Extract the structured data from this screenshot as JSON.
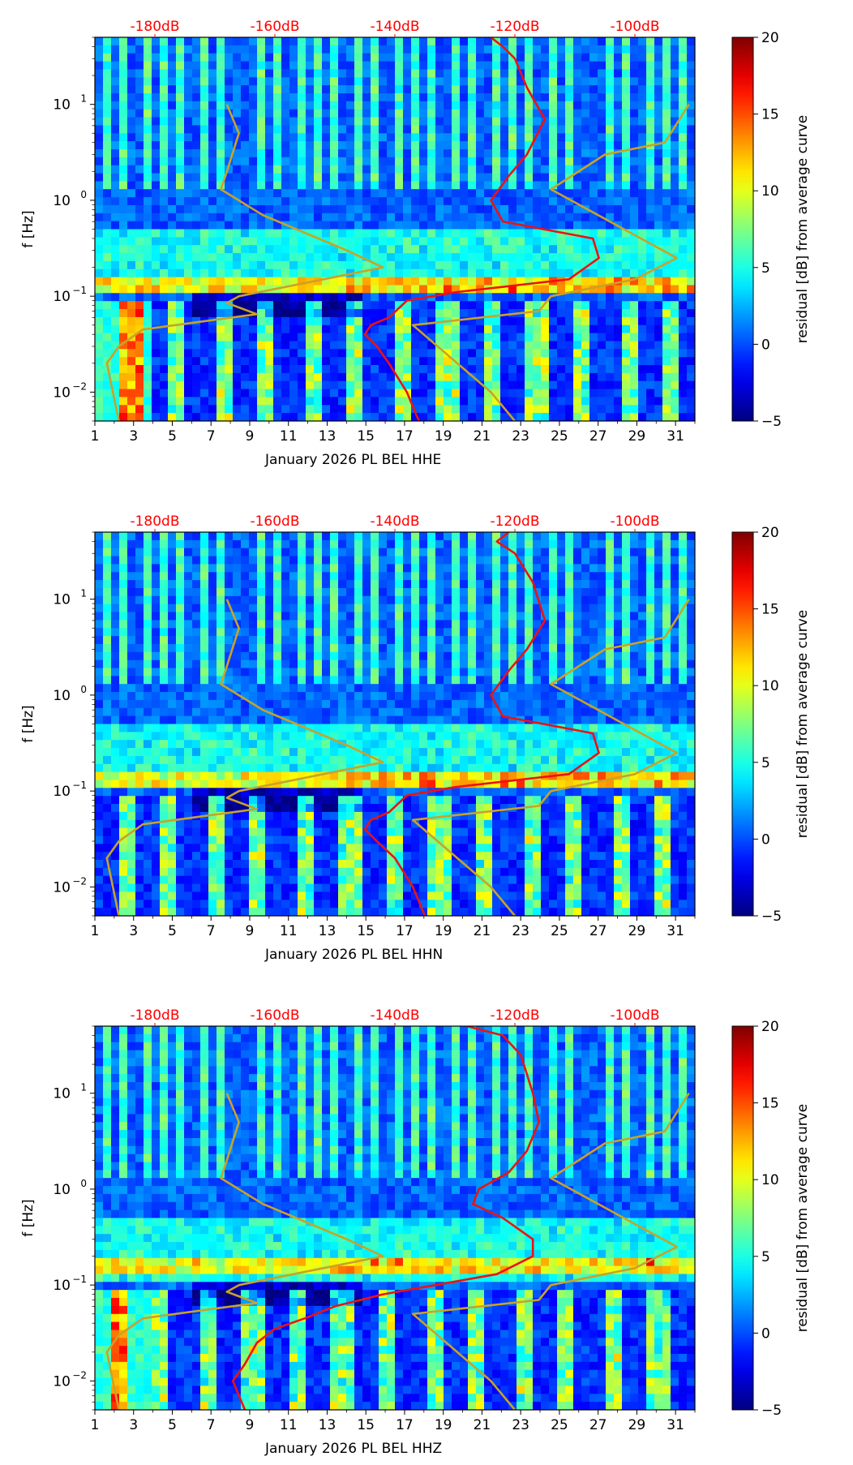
{
  "figure": {
    "colorbar_label": "residual [dB] from average curve",
    "colorbar_ticks": [
      -5,
      0,
      5,
      10,
      15,
      20
    ],
    "colorbar_range": [
      -5,
      20
    ],
    "colors": {
      "db_top_label": "#ff0000",
      "psd_curve": "#ee1111",
      "noise_model": "#c9a227",
      "axis": "#000000"
    }
  },
  "chart_data": [
    {
      "type": "heatmap",
      "title": "",
      "xlabel": "January 2026 PL BEL  HHE",
      "ylabel": "f [Hz]",
      "x_ticks": [
        "1",
        "3",
        "5",
        "7",
        "9",
        "11",
        "13",
        "15",
        "17",
        "19",
        "21",
        "23",
        "25",
        "27",
        "29",
        "31"
      ],
      "xlim": [
        1,
        32
      ],
      "y_ticks": [
        {
          "value": 0.01,
          "base": "10",
          "exp": "−2"
        },
        {
          "value": 0.1,
          "base": "10",
          "exp": "−1"
        },
        {
          "value": 1,
          "base": "10",
          "exp": "0"
        },
        {
          "value": 10,
          "base": "10",
          "exp": "1"
        }
      ],
      "ylim": [
        0.005,
        50
      ],
      "top_ticks": [
        {
          "label": "-180dB",
          "value": -180
        },
        {
          "label": "-160dB",
          "value": -160
        },
        {
          "label": "-140dB",
          "value": -140
        },
        {
          "label": "-120dB",
          "value": -120
        },
        {
          "label": "-100dB",
          "value": -100
        }
      ],
      "top_range": [
        -190,
        -90
      ],
      "series": [
        {
          "name": "psd_curve",
          "points": [
            [
              -124,
              50
            ],
            [
              -122,
              40
            ],
            [
              -120,
              30
            ],
            [
              -118,
              15
            ],
            [
              -115,
              7
            ],
            [
              -118,
              3
            ],
            [
              -121,
              1.8
            ],
            [
              -124,
              1
            ],
            [
              -122,
              0.6
            ],
            [
              -107,
              0.4
            ],
            [
              -106,
              0.25
            ],
            [
              -111,
              0.15
            ],
            [
              -130,
              0.11
            ],
            [
              -138,
              0.09
            ],
            [
              -141,
              0.06
            ],
            [
              -144,
              0.05
            ],
            [
              -145,
              0.04
            ],
            [
              -143,
              0.03
            ],
            [
              -141,
              0.02
            ],
            [
              -138,
              0.01
            ],
            [
              -136,
              0.005
            ]
          ]
        },
        {
          "name": "high_noise_model",
          "points": [
            [
              -91,
              10
            ],
            [
              -95,
              4
            ],
            [
              -105,
              3
            ],
            [
              -114,
              1.3
            ],
            [
              -93,
              0.25
            ],
            [
              -100,
              0.15
            ],
            [
              -114,
              0.1
            ],
            [
              -116,
              0.07
            ],
            [
              -137,
              0.05
            ],
            [
              -124,
              0.01
            ],
            [
              -120,
              0.005
            ]
          ]
        },
        {
          "name": "low_noise_model",
          "points": [
            [
              -168,
              10
            ],
            [
              -166,
              5
            ],
            [
              -168,
              2
            ],
            [
              -169,
              1.3
            ],
            [
              -162,
              0.7
            ],
            [
              -148,
              0.3
            ],
            [
              -142,
              0.2
            ],
            [
              -166,
              0.1
            ],
            [
              -168,
              0.085
            ],
            [
              -163,
              0.065
            ],
            [
              -182,
              0.045
            ],
            [
              -186,
              0.03
            ],
            [
              -188,
              0.02
            ],
            [
              -187,
              0.01
            ],
            [
              -186,
              0.005
            ]
          ]
        }
      ]
    },
    {
      "type": "heatmap",
      "title": "",
      "xlabel": "January 2026 PL BEL  HHN",
      "ylabel": "f [Hz]",
      "x_ticks": [
        "1",
        "3",
        "5",
        "7",
        "9",
        "11",
        "13",
        "15",
        "17",
        "19",
        "21",
        "23",
        "25",
        "27",
        "29",
        "31"
      ],
      "xlim": [
        1,
        32
      ],
      "y_ticks": [
        {
          "value": 0.01,
          "base": "10",
          "exp": "−2"
        },
        {
          "value": 0.1,
          "base": "10",
          "exp": "−1"
        },
        {
          "value": 1,
          "base": "10",
          "exp": "0"
        },
        {
          "value": 10,
          "base": "10",
          "exp": "1"
        }
      ],
      "ylim": [
        0.005,
        50
      ],
      "top_ticks": [
        {
          "label": "-180dB",
          "value": -180
        },
        {
          "label": "-160dB",
          "value": -160
        },
        {
          "label": "-140dB",
          "value": -140
        },
        {
          "label": "-120dB",
          "value": -120
        },
        {
          "label": "-100dB",
          "value": -100
        }
      ],
      "top_range": [
        -190,
        -90
      ],
      "series": [
        {
          "name": "psd_curve",
          "points": [
            [
              -121,
              50
            ],
            [
              -123,
              40
            ],
            [
              -120,
              30
            ],
            [
              -117,
              15
            ],
            [
              -115,
              6
            ],
            [
              -118,
              3
            ],
            [
              -121,
              1.8
            ],
            [
              -124,
              1
            ],
            [
              -122,
              0.6
            ],
            [
              -107,
              0.4
            ],
            [
              -106,
              0.25
            ],
            [
              -111,
              0.15
            ],
            [
              -130,
              0.11
            ],
            [
              -138,
              0.09
            ],
            [
              -141,
              0.06
            ],
            [
              -144,
              0.05
            ],
            [
              -145,
              0.04
            ],
            [
              -143,
              0.03
            ],
            [
              -140,
              0.02
            ],
            [
              -137,
              0.01
            ],
            [
              -135,
              0.005
            ]
          ]
        },
        {
          "name": "high_noise_model",
          "points": [
            [
              -91,
              10
            ],
            [
              -95,
              4
            ],
            [
              -105,
              3
            ],
            [
              -114,
              1.3
            ],
            [
              -93,
              0.25
            ],
            [
              -100,
              0.15
            ],
            [
              -114,
              0.1
            ],
            [
              -116,
              0.07
            ],
            [
              -137,
              0.05
            ],
            [
              -124,
              0.01
            ],
            [
              -120,
              0.005
            ]
          ]
        },
        {
          "name": "low_noise_model",
          "points": [
            [
              -168,
              10
            ],
            [
              -166,
              5
            ],
            [
              -168,
              2
            ],
            [
              -169,
              1.3
            ],
            [
              -162,
              0.7
            ],
            [
              -148,
              0.3
            ],
            [
              -142,
              0.2
            ],
            [
              -166,
              0.1
            ],
            [
              -168,
              0.085
            ],
            [
              -163,
              0.065
            ],
            [
              -182,
              0.045
            ],
            [
              -186,
              0.03
            ],
            [
              -188,
              0.02
            ],
            [
              -187,
              0.01
            ],
            [
              -186,
              0.005
            ]
          ]
        }
      ]
    },
    {
      "type": "heatmap",
      "title": "",
      "xlabel": "January 2026 PL BEL  HHZ",
      "ylabel": "f [Hz]",
      "x_ticks": [
        "1",
        "3",
        "5",
        "7",
        "9",
        "11",
        "13",
        "15",
        "17",
        "19",
        "21",
        "23",
        "25",
        "27",
        "29",
        "31"
      ],
      "xlim": [
        1,
        32
      ],
      "y_ticks": [
        {
          "value": 0.01,
          "base": "10",
          "exp": "−2"
        },
        {
          "value": 0.1,
          "base": "10",
          "exp": "−1"
        },
        {
          "value": 1,
          "base": "10",
          "exp": "0"
        },
        {
          "value": 10,
          "base": "10",
          "exp": "1"
        }
      ],
      "ylim": [
        0.005,
        50
      ],
      "top_ticks": [
        {
          "label": "-180dB",
          "value": -180
        },
        {
          "label": "-160dB",
          "value": -160
        },
        {
          "label": "-140dB",
          "value": -140
        },
        {
          "label": "-120dB",
          "value": -120
        },
        {
          "label": "-100dB",
          "value": -100
        }
      ],
      "top_range": [
        -190,
        -90
      ],
      "series": [
        {
          "name": "psd_curve",
          "points": [
            [
              -128,
              50
            ],
            [
              -122,
              40
            ],
            [
              -119,
              25
            ],
            [
              -117,
              10
            ],
            [
              -116,
              5
            ],
            [
              -118,
              2.5
            ],
            [
              -121,
              1.5
            ],
            [
              -126,
              1
            ],
            [
              -127,
              0.7
            ],
            [
              -122,
              0.5
            ],
            [
              -117,
              0.3
            ],
            [
              -117,
              0.2
            ],
            [
              -123,
              0.13
            ],
            [
              -142,
              0.08
            ],
            [
              -150,
              0.06
            ],
            [
              -155,
              0.045
            ],
            [
              -160,
              0.035
            ],
            [
              -163,
              0.025
            ],
            [
              -165,
              0.015
            ],
            [
              -167,
              0.01
            ],
            [
              -165,
              0.005
            ]
          ]
        },
        {
          "name": "high_noise_model",
          "points": [
            [
              -91,
              10
            ],
            [
              -95,
              4
            ],
            [
              -105,
              3
            ],
            [
              -114,
              1.3
            ],
            [
              -93,
              0.25
            ],
            [
              -100,
              0.15
            ],
            [
              -114,
              0.1
            ],
            [
              -116,
              0.07
            ],
            [
              -137,
              0.05
            ],
            [
              -124,
              0.01
            ],
            [
              -120,
              0.005
            ]
          ]
        },
        {
          "name": "low_noise_model",
          "points": [
            [
              -168,
              10
            ],
            [
              -166,
              5
            ],
            [
              -168,
              2
            ],
            [
              -169,
              1.3
            ],
            [
              -162,
              0.7
            ],
            [
              -148,
              0.3
            ],
            [
              -142,
              0.2
            ],
            [
              -166,
              0.1
            ],
            [
              -168,
              0.085
            ],
            [
              -163,
              0.065
            ],
            [
              -182,
              0.045
            ],
            [
              -186,
              0.03
            ],
            [
              -188,
              0.02
            ],
            [
              -187,
              0.01
            ],
            [
              -186,
              0.005
            ]
          ]
        }
      ]
    }
  ]
}
